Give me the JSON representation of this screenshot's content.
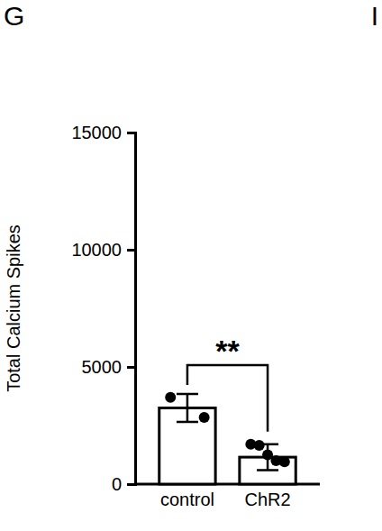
{
  "chart_data": {
    "type": "bar",
    "categories": [
      "control",
      "ChR2"
    ],
    "values": [
      3250,
      1150
    ],
    "errors": [
      600,
      550
    ],
    "points": [
      [
        3700,
        2850
      ],
      [
        1700,
        1650,
        1250,
        1000,
        950
      ]
    ],
    "y_label": "Total Calcium Spikes",
    "ylim": [
      0,
      15000
    ],
    "yticks": [
      0,
      5000,
      10000,
      15000
    ],
    "color": "#ffffff",
    "panel_labels": [
      "G",
      "I"
    ],
    "annotations": [
      {
        "text": "**",
        "between": [
          0,
          1
        ]
      }
    ]
  }
}
